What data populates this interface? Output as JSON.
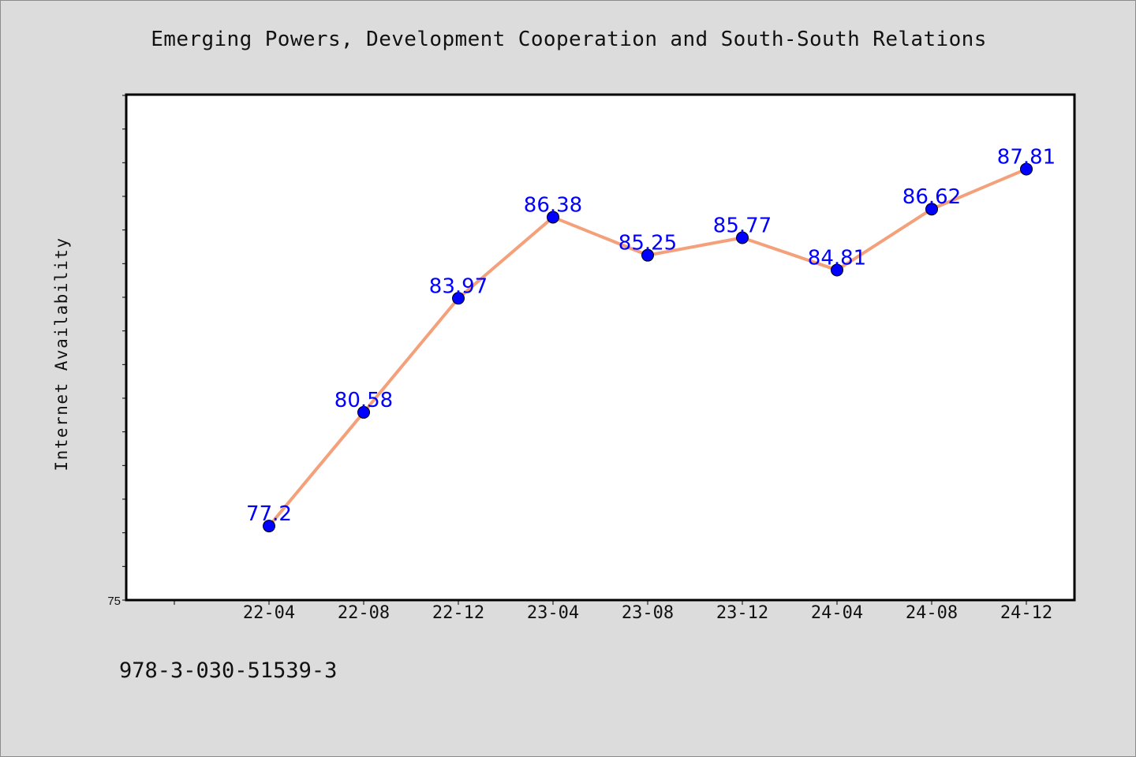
{
  "chart_data": {
    "type": "line",
    "title": "Emerging Powers, Development Cooperation and South-South Relations",
    "xlabel": "",
    "ylabel": "Internet Availability",
    "categories": [
      "22-04",
      "22-08",
      "22-12",
      "23-04",
      "23-08",
      "23-12",
      "24-04",
      "24-08",
      "24-12"
    ],
    "series": [
      {
        "values": [
          77.2,
          80.58,
          83.97,
          86.38,
          85.25,
          85.77,
          84.81,
          86.62,
          87.81
        ],
        "labels": [
          "77.2",
          "80.58",
          "83.97",
          "86.38",
          "85.25",
          "85.77",
          "84.81",
          "86.62",
          "87.81"
        ],
        "line_color": "#f4a07a",
        "marker_color": "#0000ff",
        "label_color": "#0000ff"
      }
    ],
    "ylim": [
      75,
      90
    ],
    "yticks_labeled": [
      "75"
    ],
    "grid": false,
    "legend": "none"
  },
  "footer": {
    "isbn": "978-3-030-51539-3"
  },
  "colors": {
    "background": "#dcdcdc",
    "plot_area": "#ffffff",
    "axis": "#000000"
  }
}
